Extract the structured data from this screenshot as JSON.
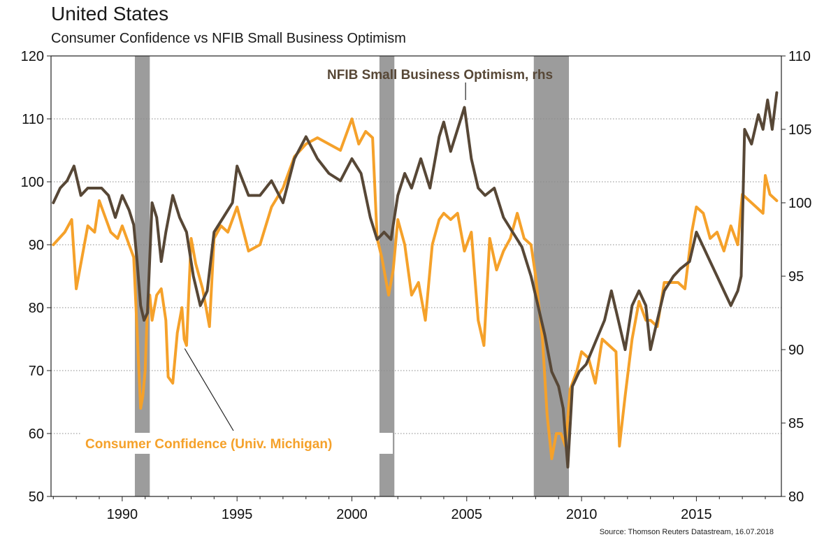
{
  "chart_data": {
    "type": "line",
    "title": "United States",
    "subtitle": "Consumer Confidence vs NFIB Small Business Optimism",
    "source": "Source: Thomson Reuters Datastream, 16.07.2018",
    "xlim": [
      1986.9,
      2018.7
    ],
    "x_ticks": [
      1990,
      1995,
      2000,
      2005,
      2010,
      2015
    ],
    "y_left": {
      "lim": [
        50,
        120
      ],
      "ticks": [
        50,
        60,
        70,
        80,
        90,
        100,
        110,
        120
      ]
    },
    "y_right": {
      "lim": [
        80,
        110
      ],
      "ticks": [
        80,
        85,
        90,
        95,
        100,
        105,
        110
      ]
    },
    "grid": "horizontal dotted",
    "recessions": [
      [
        1990.55,
        1991.2
      ],
      [
        2001.2,
        2001.85
      ],
      [
        2007.92,
        2009.45
      ]
    ],
    "recession_color": "#9c9c9c",
    "series": [
      {
        "name": "Consumer Confidence (Univ. Michigan)",
        "axis": "left",
        "color": "#f5a12a",
        "x": [
          1987.0,
          1987.5,
          1987.8,
          1988.0,
          1988.5,
          1988.8,
          1989.0,
          1989.5,
          1989.8,
          1990.0,
          1990.3,
          1990.5,
          1990.6,
          1990.7,
          1990.8,
          1990.9,
          1991.0,
          1991.1,
          1991.2,
          1991.3,
          1991.5,
          1991.7,
          1991.9,
          1992.0,
          1992.2,
          1992.4,
          1992.6,
          1992.7,
          1992.8,
          1993.0,
          1993.2,
          1993.5,
          1993.8,
          1994.0,
          1994.3,
          1994.6,
          1995.0,
          1995.5,
          1996.0,
          1996.5,
          1997.0,
          1997.5,
          1998.0,
          1998.5,
          1999.0,
          1999.5,
          2000.0,
          2000.3,
          2000.6,
          2000.9,
          2001.1,
          2001.3,
          2001.6,
          2001.8,
          2002.0,
          2002.3,
          2002.6,
          2002.9,
          2003.2,
          2003.5,
          2003.8,
          2004.0,
          2004.3,
          2004.6,
          2004.9,
          2005.2,
          2005.5,
          2005.75,
          2006.0,
          2006.3,
          2006.6,
          2006.9,
          2007.2,
          2007.5,
          2007.8,
          2008.0,
          2008.3,
          2008.5,
          2008.7,
          2008.9,
          2009.1,
          2009.3,
          2009.5,
          2009.8,
          2010.0,
          2010.3,
          2010.6,
          2010.9,
          2011.2,
          2011.5,
          2011.65,
          2011.9,
          2012.2,
          2012.5,
          2012.8,
          2013.0,
          2013.3,
          2013.6,
          2013.9,
          2014.2,
          2014.5,
          2014.8,
          2015.0,
          2015.3,
          2015.6,
          2015.9,
          2016.2,
          2016.5,
          2016.8,
          2017.0,
          2017.3,
          2017.6,
          2017.9,
          2018.0,
          2018.2,
          2018.5
        ],
        "values": [
          90,
          92,
          94,
          83,
          93,
          92,
          97,
          92,
          91,
          93,
          90,
          88,
          80,
          72,
          64,
          66,
          70,
          80,
          82,
          78,
          82,
          83,
          78,
          69,
          68,
          76,
          80,
          75,
          74,
          91,
          87,
          83,
          77,
          91,
          93,
          92,
          96,
          89,
          90,
          96,
          99,
          104,
          106,
          107,
          106,
          105,
          110,
          106,
          108,
          107,
          91,
          88,
          82,
          86,
          94,
          90,
          82,
          84,
          78,
          90,
          94,
          95,
          94,
          95,
          89,
          92,
          78,
          74,
          91,
          86,
          89,
          91,
          95,
          91,
          90,
          85,
          75,
          63,
          56,
          60,
          60,
          58,
          67,
          70,
          73,
          72,
          68,
          75,
          74,
          73,
          58,
          66,
          75,
          81,
          78,
          78,
          77,
          84,
          84,
          84,
          83,
          92,
          96,
          95,
          91,
          92,
          89,
          93,
          90,
          98,
          97,
          96,
          95,
          101,
          98,
          97
        ]
      },
      {
        "name": "NFIB Small Business Optimism, rhs",
        "axis": "right",
        "color": "#574736",
        "x": [
          1987.0,
          1987.3,
          1987.6,
          1987.9,
          1988.2,
          1988.5,
          1988.8,
          1989.1,
          1989.4,
          1989.7,
          1990.0,
          1990.3,
          1990.5,
          1990.65,
          1990.8,
          1990.95,
          1991.1,
          1991.3,
          1991.5,
          1991.7,
          1991.9,
          1992.2,
          1992.5,
          1992.8,
          1993.1,
          1993.4,
          1993.7,
          1994.0,
          1994.4,
          1994.8,
          1995.0,
          1995.5,
          1996.0,
          1996.5,
          1997.0,
          1997.5,
          1998.0,
          1998.5,
          1999.0,
          1999.5,
          2000.0,
          2000.4,
          2000.8,
          2001.1,
          2001.4,
          2001.7,
          2002.0,
          2002.3,
          2002.6,
          2003.0,
          2003.4,
          2003.8,
          2004.0,
          2004.3,
          2004.6,
          2004.9,
          2005.2,
          2005.5,
          2005.8,
          2006.2,
          2006.6,
          2007.0,
          2007.4,
          2007.8,
          2008.1,
          2008.4,
          2008.7,
          2009.0,
          2009.2,
          2009.4,
          2009.6,
          2009.9,
          2010.2,
          2010.6,
          2011.0,
          2011.3,
          2011.6,
          2011.9,
          2012.2,
          2012.5,
          2012.8,
          2013.0,
          2013.3,
          2013.6,
          2014.0,
          2014.3,
          2014.7,
          2015.0,
          2015.3,
          2015.6,
          2015.9,
          2016.2,
          2016.5,
          2016.8,
          2016.95,
          2017.1,
          2017.4,
          2017.7,
          2017.9,
          2018.1,
          2018.3,
          2018.5
        ],
        "values": [
          100,
          101,
          101.5,
          102.5,
          100.5,
          101,
          101,
          101,
          100.5,
          99,
          100.5,
          99.5,
          98.5,
          96,
          93,
          92,
          92.5,
          100,
          99,
          96,
          98,
          100.5,
          99,
          98,
          95,
          93,
          94,
          98,
          99,
          100,
          102.5,
          100.5,
          100.5,
          101.5,
          100,
          103,
          104.5,
          103,
          102,
          101.5,
          103,
          102,
          99,
          97.5,
          98,
          97.5,
          100.5,
          102,
          101,
          103,
          101,
          104.5,
          105.5,
          103.5,
          105,
          106.5,
          103,
          101,
          100.5,
          101,
          99,
          98,
          97,
          95,
          93,
          91,
          88.5,
          87.5,
          86,
          82,
          87.5,
          88.5,
          89,
          90.5,
          92,
          94,
          92,
          90,
          93,
          94,
          93,
          90,
          92,
          94,
          95,
          95.5,
          96,
          98,
          97,
          96,
          95,
          94,
          93,
          94,
          95,
          105,
          104,
          106,
          105,
          107,
          105,
          107.5
        ]
      }
    ]
  }
}
